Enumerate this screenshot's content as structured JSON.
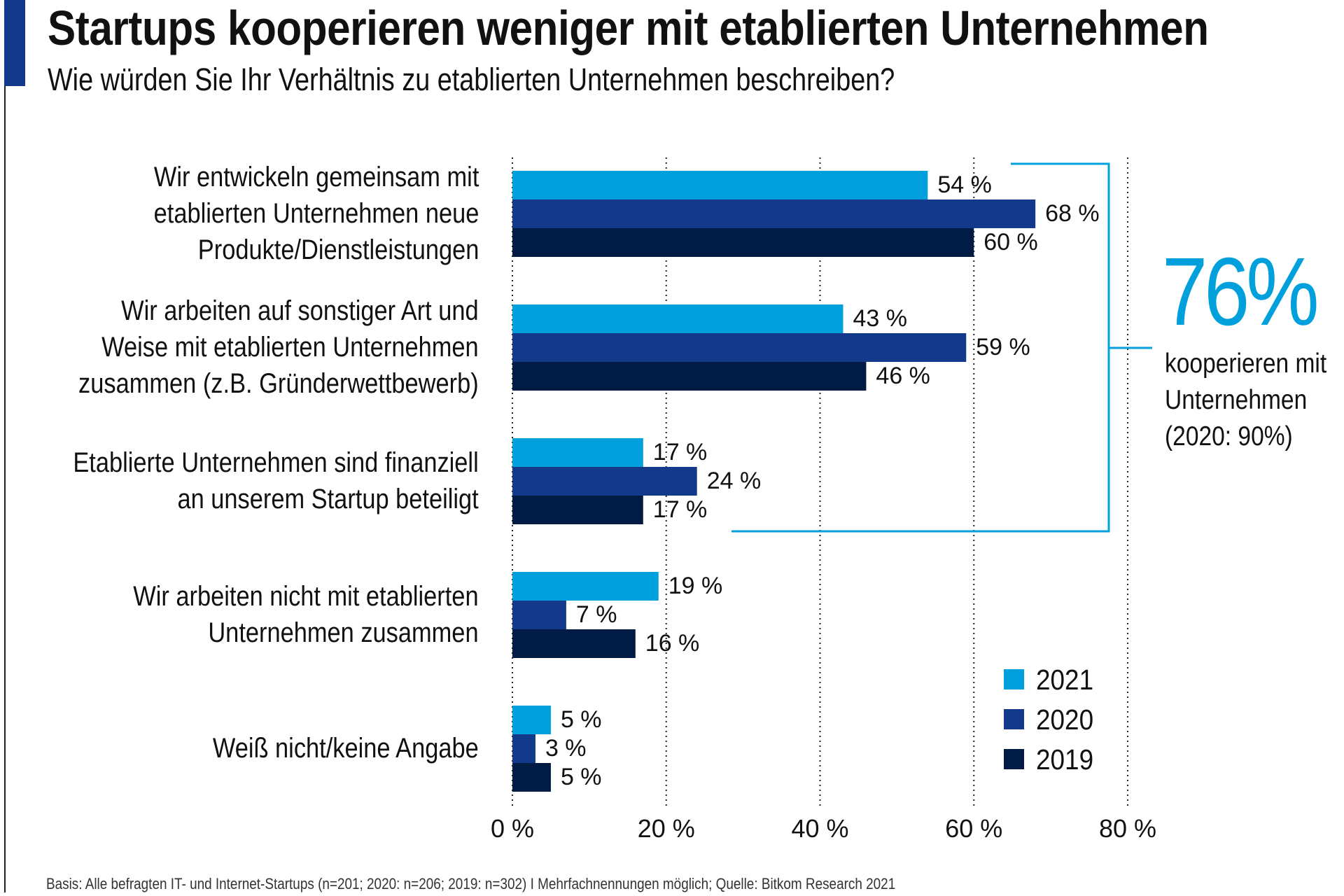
{
  "title": "Startups kooperieren weniger mit etablierten Unternehmen",
  "subtitle": "Wie würden Sie Ihr Verhältnis zu etablierten Unternehmen beschreiben?",
  "callout": {
    "value": "76%",
    "lines": [
      "kooperieren mit",
      "Unternehmen",
      "(2020: 90%)"
    ],
    "color": "#00a0dc"
  },
  "footer": "Basis: Alle befragten IT- und Internet-Startups (n=201; 2020: n=206; 2019: n=302) I Mehrfachnennungen möglich; Quelle: Bitkom Research 2021",
  "chart_data": {
    "type": "bar",
    "orientation": "horizontal",
    "categories": [
      [
        "Wir entwickeln gemeinsam mit",
        "etablierten Unternehmen neue",
        "Produkte/Dienstleistungen"
      ],
      [
        "Wir arbeiten auf sonstiger Art und",
        "Weise mit etablierten Unternehmen",
        "zusammen (z.B. Gründerwettbewerb)"
      ],
      [
        "Etablierte Unternehmen sind finanziell",
        "an unserem Startup beteiligt"
      ],
      [
        "Wir arbeiten nicht mit etablierten",
        "Unternehmen zusammen"
      ],
      [
        "Weiß nicht/keine Angabe"
      ]
    ],
    "series": [
      {
        "name": "2021",
        "color": "#00a0dc",
        "values": [
          54,
          43,
          17,
          19,
          5
        ],
        "labels": [
          "54 %",
          "43 %",
          "17 %",
          "19 %",
          "5 %"
        ]
      },
      {
        "name": "2020",
        "color": "#133a8a",
        "values": [
          68,
          59,
          24,
          7,
          3
        ],
        "labels": [
          "68 %",
          "59 %",
          "24 %",
          "7 %",
          "3 %"
        ]
      },
      {
        "name": "2019",
        "color": "#001c44",
        "values": [
          60,
          46,
          17,
          16,
          5
        ],
        "labels": [
          "60 %",
          "46 %",
          "17 %",
          "16 %",
          "5 %"
        ]
      }
    ],
    "xlim": [
      0,
      80
    ],
    "xticks": [
      0,
      20,
      40,
      60,
      80
    ],
    "xtick_labels": [
      "0 %",
      "20 %",
      "40 %",
      "60 %",
      "80 %"
    ],
    "grid": "vertical dotted",
    "legend": "bottom-right"
  }
}
